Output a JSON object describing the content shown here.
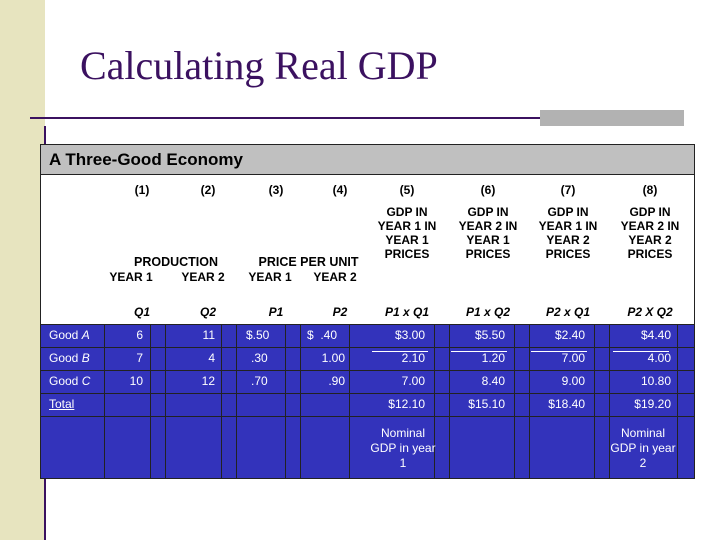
{
  "title": "Calculating Real GDP",
  "table_title": "A Three-Good Economy",
  "col_numbers": [
    "(1)",
    "(2)",
    "(3)",
    "(4)",
    "(5)",
    "(6)",
    "(7)",
    "(8)"
  ],
  "group_headers": {
    "production": "PRODUCTION",
    "price": "PRICE PER UNIT"
  },
  "sub_headers": {
    "c1": "YEAR 1",
    "c2": "YEAR 2",
    "c3": "YEAR 1",
    "c4": "YEAR 2",
    "c5": "GDP IN YEAR 1 IN YEAR 1 PRICES",
    "c6": "GDP IN YEAR 2 IN YEAR 1 PRICES",
    "c7": "GDP IN YEAR 1 IN YEAR 2 PRICES",
    "c8": "GDP IN YEAR 2 IN YEAR 2 PRICES"
  },
  "symbols": [
    "Q1",
    "Q2",
    "P1",
    "P2",
    "P1 x Q1",
    "P1 x Q2",
    "P2 x Q1",
    "P2 X Q2"
  ],
  "rows": [
    {
      "label": "Good A",
      "values": [
        "6",
        "11",
        "$.50",
        "$  .40",
        "$3.00",
        "$5.50",
        "$2.40",
        "$4.40"
      ]
    },
    {
      "label": "Good B",
      "values": [
        "7",
        "4",
        ".30",
        "1.00",
        "2.10",
        "1.20",
        "7.00",
        "4.00"
      ]
    },
    {
      "label": "Good C",
      "values": [
        "10",
        "12",
        ".70",
        ".90",
        "7.00",
        "8.40",
        "9.00",
        "10.80"
      ]
    }
  ],
  "total": {
    "label": "Total",
    "values": [
      "$12.10",
      "$15.10",
      "$18.40",
      "$19.20"
    ]
  },
  "notes": {
    "c5": "Nominal GDP in year 1",
    "c8": "Nominal GDP in year 2"
  }
}
